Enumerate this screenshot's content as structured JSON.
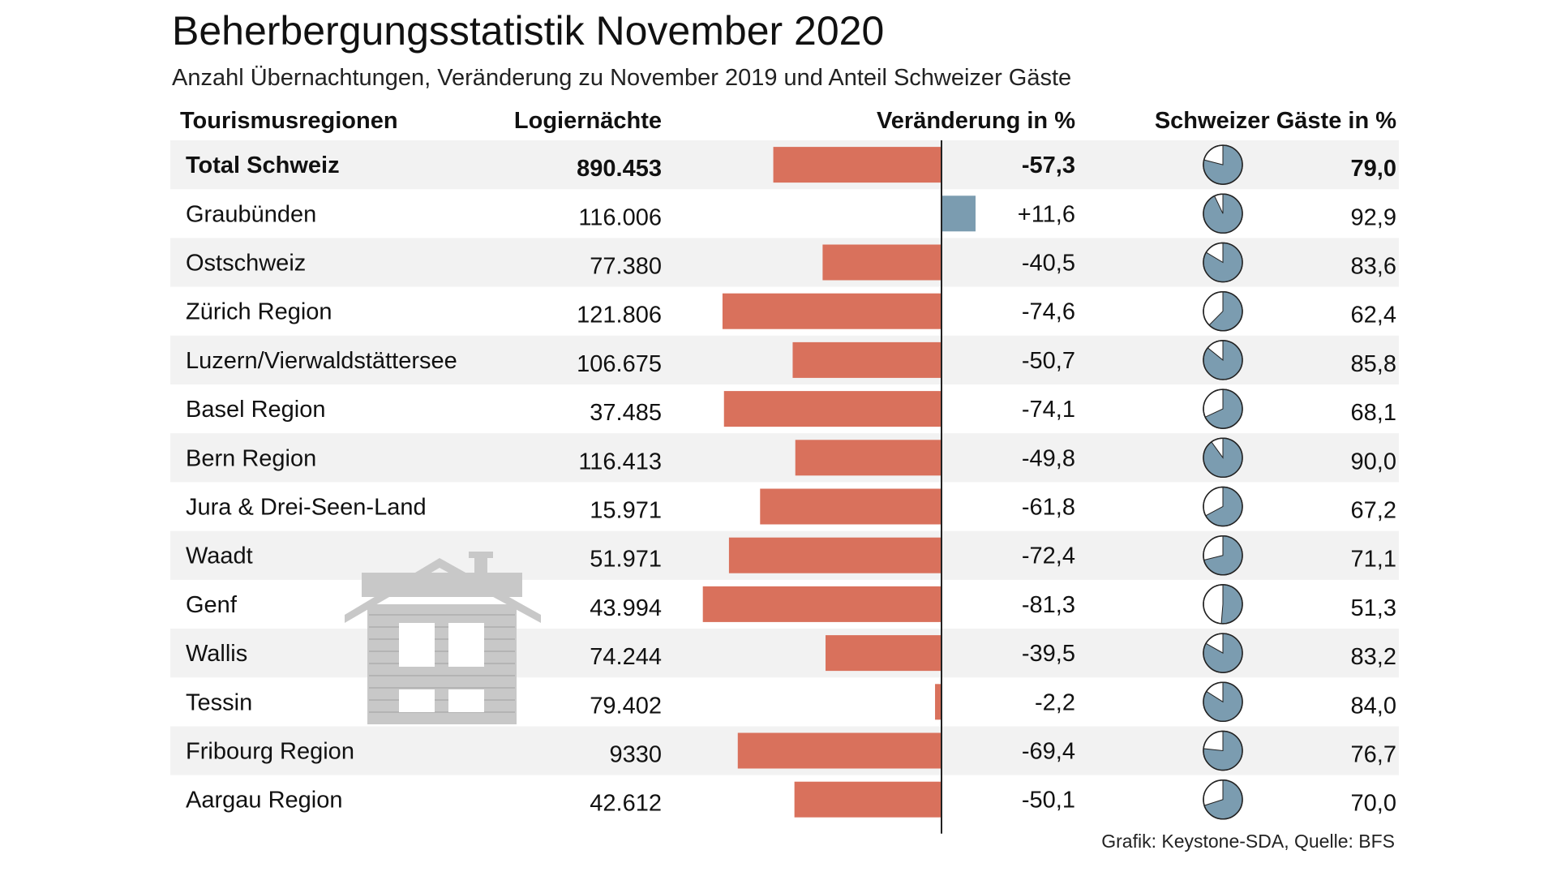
{
  "colors": {
    "negative_bar": "#d9715c",
    "positive_bar": "#7b9cb0",
    "pie_fill": "#7b9cb0",
    "pie_empty": "#ffffff",
    "stripe": "#f2f2f2",
    "house_icon": "#c8c8c8"
  },
  "chart_data": {
    "type": "table",
    "title": "Beherbergungsstatistik November 2020",
    "subtitle": "Anzahl Übernachtungen, Veränderung zu November 2019 und Anteil Schweizer Gäste",
    "columns": [
      "Tourismusregionen",
      "Logiernächte",
      "Veränderung in %",
      "Schweizer Gäste in %"
    ],
    "rows": [
      {
        "region": "Total Schweiz",
        "logiernaechte": "890.453",
        "change_label": "-57,3",
        "change": -57.3,
        "swiss_label": "79,0",
        "swiss": 79.0,
        "bold": true
      },
      {
        "region": "Graubünden",
        "logiernaechte": "116.006",
        "change_label": "+11,6",
        "change": 11.6,
        "swiss_label": "92,9",
        "swiss": 92.9
      },
      {
        "region": "Ostschweiz",
        "logiernaechte": "77.380",
        "change_label": "-40,5",
        "change": -40.5,
        "swiss_label": "83,6",
        "swiss": 83.6
      },
      {
        "region": "Zürich Region",
        "logiernaechte": "121.806",
        "change_label": "-74,6",
        "change": -74.6,
        "swiss_label": "62,4",
        "swiss": 62.4
      },
      {
        "region": "Luzern/Vierwaldstättersee",
        "logiernaechte": "106.675",
        "change_label": "-50,7",
        "change": -50.7,
        "swiss_label": "85,8",
        "swiss": 85.8
      },
      {
        "region": "Basel Region",
        "logiernaechte": "37.485",
        "change_label": "-74,1",
        "change": -74.1,
        "swiss_label": "68,1",
        "swiss": 68.1
      },
      {
        "region": "Bern Region",
        "logiernaechte": "116.413",
        "change_label": "-49,8",
        "change": -49.8,
        "swiss_label": "90,0",
        "swiss": 90.0
      },
      {
        "region": "Jura & Drei-Seen-Land",
        "logiernaechte": "15.971",
        "change_label": "-61,8",
        "change": -61.8,
        "swiss_label": "67,2",
        "swiss": 67.2
      },
      {
        "region": "Waadt",
        "logiernaechte": "51.971",
        "change_label": "-72,4",
        "change": -72.4,
        "swiss_label": "71,1",
        "swiss": 71.1
      },
      {
        "region": "Genf",
        "logiernaechte": "43.994",
        "change_label": "-81,3",
        "change": -81.3,
        "swiss_label": "51,3",
        "swiss": 51.3
      },
      {
        "region": "Wallis",
        "logiernaechte": "74.244",
        "change_label": "-39,5",
        "change": -39.5,
        "swiss_label": "83,2",
        "swiss": 83.2
      },
      {
        "region": "Tessin",
        "logiernaechte": "79.402",
        "change_label": "-2,2",
        "change": -2.2,
        "swiss_label": "84,0",
        "swiss": 84.0
      },
      {
        "region": "Fribourg Region",
        "logiernaechte": "9330",
        "change_label": "-69,4",
        "change": -69.4,
        "swiss_label": "76,7",
        "swiss": 76.7
      },
      {
        "region": "Aargau Region",
        "logiernaechte": "42.612",
        "change_label": "-50,1",
        "change": -50.1,
        "swiss_label": "70,0",
        "swiss": 70.0
      }
    ],
    "source": "Grafik: Keystone-SDA, Quelle: BFS"
  }
}
